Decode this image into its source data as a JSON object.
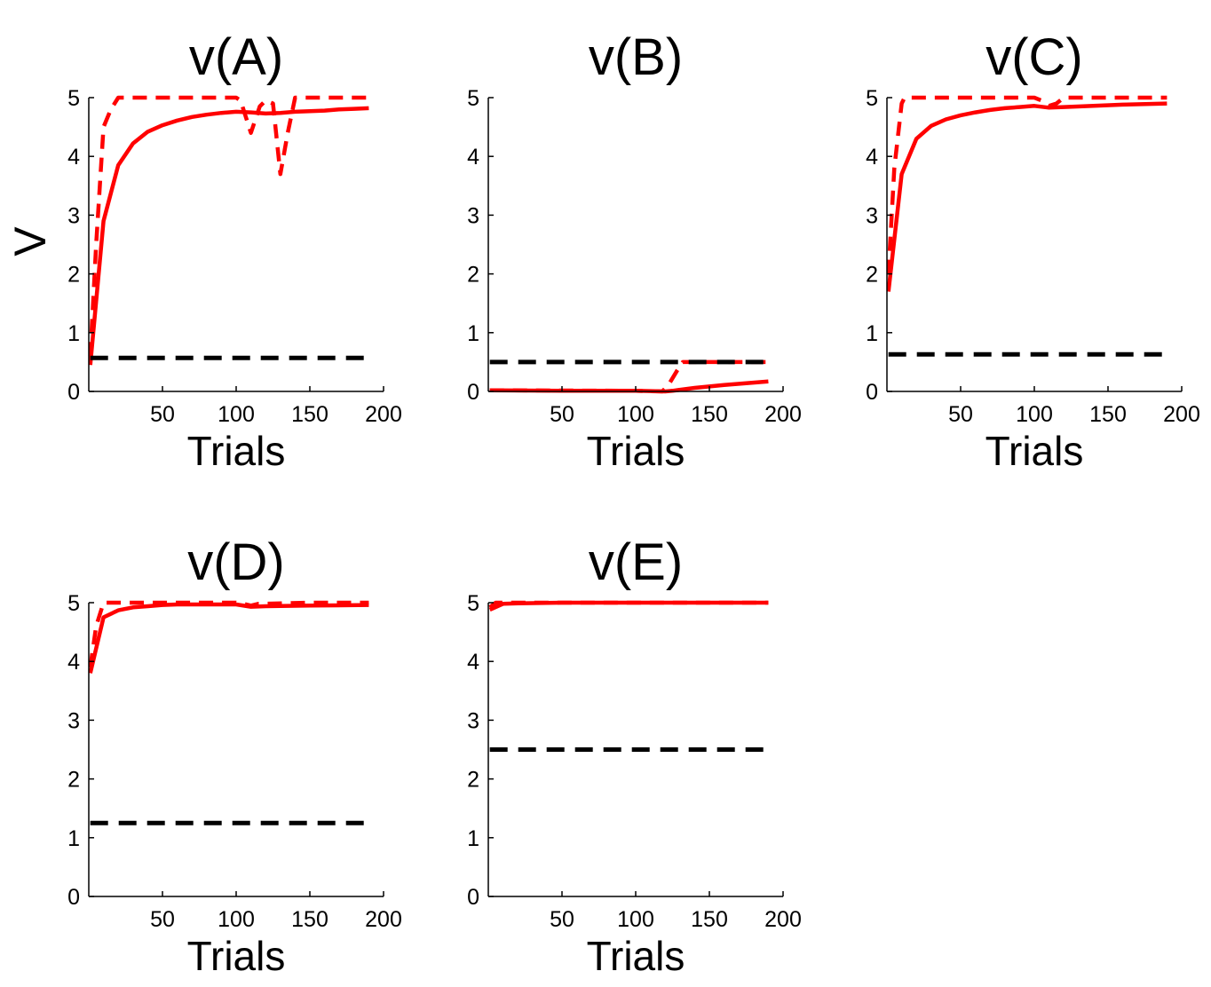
{
  "figure": {
    "ylabel": "V"
  },
  "chart_data": [
    {
      "type": "line",
      "title": "v(A)",
      "xlabel": "Trials",
      "ylabel": "V",
      "xlim": [
        0,
        200
      ],
      "ylim": [
        0,
        5
      ],
      "xticks": [
        50,
        100,
        150,
        200
      ],
      "yticks": [
        0,
        1,
        2,
        3,
        4,
        5
      ],
      "grid": false,
      "series": [
        {
          "style": "solid",
          "color": "#ff0000",
          "x": [
            1,
            10,
            20,
            30,
            40,
            50,
            60,
            70,
            80,
            90,
            100,
            110,
            120,
            130,
            140,
            150,
            160,
            170,
            180,
            190
          ],
          "y": [
            0.45,
            2.9,
            3.85,
            4.22,
            4.42,
            4.53,
            4.61,
            4.67,
            4.71,
            4.74,
            4.76,
            4.75,
            4.73,
            4.74,
            4.76,
            4.77,
            4.78,
            4.8,
            4.81,
            4.82
          ]
        },
        {
          "style": "dashed",
          "color": "#ff0000",
          "x": [
            1,
            5,
            10,
            15,
            20,
            30,
            50,
            80,
            100,
            103,
            110,
            116,
            120,
            125,
            130,
            135,
            140,
            150,
            170,
            190
          ],
          "y": [
            0.6,
            2.5,
            4.5,
            4.8,
            5.0,
            5.0,
            5.0,
            5.0,
            5.0,
            4.95,
            4.4,
            4.85,
            4.95,
            4.9,
            3.7,
            4.4,
            5.0,
            5.0,
            5.0,
            5.0
          ]
        },
        {
          "style": "dashed",
          "color": "#000000",
          "x": [
            1,
            190
          ],
          "y": [
            0.57,
            0.57
          ]
        }
      ]
    },
    {
      "type": "line",
      "title": "v(B)",
      "xlabel": "Trials",
      "xlim": [
        0,
        200
      ],
      "ylim": [
        0,
        5
      ],
      "xticks": [
        50,
        100,
        150,
        200
      ],
      "yticks": [
        0,
        1,
        2,
        3,
        4,
        5
      ],
      "grid": false,
      "series": [
        {
          "style": "solid",
          "color": "#ff0000",
          "x": [
            1,
            50,
            100,
            120,
            125,
            140,
            160,
            175,
            190
          ],
          "y": [
            0.02,
            0.01,
            0.01,
            0.0,
            0.01,
            0.06,
            0.11,
            0.14,
            0.17
          ]
        },
        {
          "style": "dashed",
          "color": "#ff0000",
          "x": [
            1,
            100,
            118,
            122,
            128,
            132,
            140,
            160,
            190
          ],
          "y": [
            0.02,
            0.01,
            0.0,
            0.1,
            0.35,
            0.5,
            0.5,
            0.5,
            0.5
          ]
        },
        {
          "style": "dashed",
          "color": "#000000",
          "x": [
            1,
            190
          ],
          "y": [
            0.5,
            0.5
          ]
        }
      ]
    },
    {
      "type": "line",
      "title": "v(C)",
      "xlabel": "Trials",
      "xlim": [
        0,
        200
      ],
      "ylim": [
        0,
        5
      ],
      "xticks": [
        50,
        100,
        150,
        200
      ],
      "yticks": [
        0,
        1,
        2,
        3,
        4,
        5
      ],
      "grid": false,
      "series": [
        {
          "style": "solid",
          "color": "#ff0000",
          "x": [
            1,
            10,
            20,
            30,
            40,
            50,
            60,
            70,
            80,
            90,
            100,
            110,
            120,
            140,
            160,
            190
          ],
          "y": [
            1.7,
            3.7,
            4.3,
            4.52,
            4.63,
            4.7,
            4.75,
            4.79,
            4.82,
            4.84,
            4.86,
            4.83,
            4.84,
            4.86,
            4.88,
            4.9
          ]
        },
        {
          "style": "dashed",
          "color": "#ff0000",
          "x": [
            1,
            5,
            10,
            12,
            20,
            50,
            100,
            105,
            110,
            115,
            120,
            150,
            190
          ],
          "y": [
            2.0,
            3.8,
            4.9,
            5.0,
            5.0,
            5.0,
            5.0,
            4.95,
            4.86,
            4.9,
            5.0,
            5.0,
            5.0
          ]
        },
        {
          "style": "dashed",
          "color": "#000000",
          "x": [
            1,
            190
          ],
          "y": [
            0.63,
            0.63
          ]
        }
      ]
    },
    {
      "type": "line",
      "title": "v(D)",
      "xlabel": "Trials",
      "xlim": [
        0,
        200
      ],
      "ylim": [
        0,
        5
      ],
      "xticks": [
        50,
        100,
        150,
        200
      ],
      "yticks": [
        0,
        1,
        2,
        3,
        4,
        5
      ],
      "grid": false,
      "series": [
        {
          "style": "solid",
          "color": "#ff0000",
          "x": [
            1,
            10,
            20,
            30,
            40,
            50,
            60,
            80,
            100,
            110,
            120,
            150,
            190
          ],
          "y": [
            3.8,
            4.75,
            4.87,
            4.92,
            4.94,
            4.96,
            4.97,
            4.97,
            4.97,
            4.93,
            4.94,
            4.95,
            4.96
          ]
        },
        {
          "style": "dashed",
          "color": "#ff0000",
          "x": [
            1,
            5,
            10,
            15,
            50,
            100,
            105,
            110,
            115,
            150,
            190
          ],
          "y": [
            3.9,
            4.6,
            5.0,
            5.0,
            5.0,
            5.0,
            4.98,
            4.95,
            4.98,
            5.0,
            5.0
          ]
        },
        {
          "style": "dashed",
          "color": "#000000",
          "x": [
            1,
            190
          ],
          "y": [
            1.25,
            1.25
          ]
        }
      ]
    },
    {
      "type": "line",
      "title": "v(E)",
      "xlabel": "Trials",
      "xlim": [
        0,
        200
      ],
      "ylim": [
        0,
        5
      ],
      "xticks": [
        50,
        100,
        150,
        200
      ],
      "yticks": [
        0,
        1,
        2,
        3,
        4,
        5
      ],
      "grid": false,
      "series": [
        {
          "style": "solid",
          "color": "#ff0000",
          "x": [
            1,
            10,
            20,
            50,
            100,
            150,
            190
          ],
          "y": [
            4.88,
            4.98,
            4.99,
            5.0,
            5.0,
            5.0,
            5.0
          ]
        },
        {
          "style": "dashed",
          "color": "#ff0000",
          "x": [
            1,
            5,
            10,
            50,
            100,
            190
          ],
          "y": [
            4.92,
            5.0,
            5.0,
            5.0,
            5.0,
            5.0
          ]
        },
        {
          "style": "dashed",
          "color": "#000000",
          "x": [
            1,
            190
          ],
          "y": [
            2.5,
            2.5
          ]
        }
      ]
    }
  ]
}
